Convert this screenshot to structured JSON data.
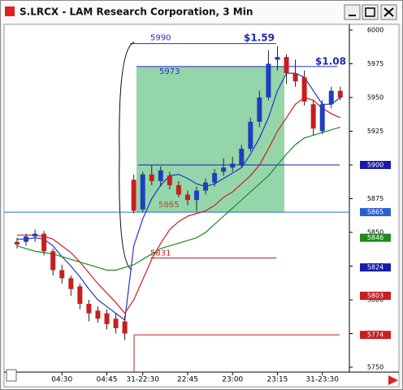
{
  "window": {
    "title": "S.LRCX - LAM Research Corporation, 3 Min"
  },
  "chart_data": {
    "type": "candlestick",
    "categories": [
      null,
      null,
      null,
      null,
      null,
      "04:30",
      null,
      null,
      null,
      null,
      "04:45",
      null,
      null,
      null,
      "31-22:30",
      null,
      null,
      null,
      null,
      "22:45",
      null,
      null,
      null,
      null,
      "23:00",
      null,
      null,
      null,
      null,
      "23:15",
      null,
      null,
      null,
      null,
      "31-23:30",
      null,
      null
    ],
    "open": [
      5843,
      5843,
      5847,
      5849,
      5836,
      5822,
      5816,
      5810,
      5797,
      5792,
      5790,
      5786,
      5784,
      5889,
      5867,
      5893,
      5888,
      5892,
      5885,
      5878,
      5874,
      5881,
      5887,
      5895,
      5898,
      5900,
      5912,
      5932,
      5950,
      5978,
      5980,
      5968,
      5965,
      5945,
      5925,
      5945,
      5955
    ],
    "high": [
      5846,
      5849,
      5852,
      5851,
      5838,
      5826,
      5818,
      5812,
      5800,
      5795,
      5793,
      5790,
      5788,
      5893,
      5895,
      5900,
      5899,
      5895,
      5888,
      5881,
      5884,
      5890,
      5897,
      5905,
      5906,
      5915,
      5935,
      5955,
      5985,
      5988,
      5982,
      5978,
      5970,
      5948,
      5948,
      5958,
      5958
    ],
    "low": [
      5838,
      5840,
      5843,
      5833,
      5818,
      5812,
      5803,
      5793,
      5784,
      5783,
      5778,
      5775,
      5770,
      5864,
      5865,
      5885,
      5884,
      5882,
      5876,
      5870,
      5866,
      5878,
      5884,
      5892,
      5895,
      5898,
      5910,
      5928,
      5948,
      5970,
      5960,
      5958,
      5944,
      5922,
      5923,
      5942,
      5948
    ],
    "close": [
      5841,
      5847,
      5849,
      5836,
      5822,
      5816,
      5808,
      5797,
      5790,
      5786,
      5782,
      5779,
      5775,
      5866,
      5893,
      5888,
      5896,
      5885,
      5878,
      5874,
      5881,
      5887,
      5894,
      5898,
      5901,
      5912,
      5932,
      5950,
      5975,
      5980,
      5968,
      5962,
      5947,
      5927,
      5945,
      5955,
      5950
    ],
    "up_color": "#1f3fbf",
    "down_color": "#c81e1e",
    "moving_averages": [
      {
        "color": "#2233cc",
        "values": [
          5845,
          5845,
          5846,
          5845,
          5840,
          5832,
          5825,
          5817,
          5808,
          5800,
          5795,
          5790,
          5785,
          5840,
          5860,
          5875,
          5885,
          5892,
          5893,
          5890,
          5886,
          5884,
          5886,
          5890,
          5894,
          5898,
          5908,
          5920,
          5935,
          5955,
          5968,
          5968,
          5965,
          5955,
          5945,
          5945,
          5950
        ]
      },
      {
        "color": "#cc1e1e",
        "values": [
          5848,
          5848,
          5848,
          5847,
          5845,
          5840,
          5835,
          5828,
          5820,
          5812,
          5805,
          5798,
          5790,
          5800,
          5815,
          5830,
          5842,
          5852,
          5858,
          5862,
          5864,
          5866,
          5870,
          5876,
          5880,
          5886,
          5892,
          5900,
          5912,
          5925,
          5935,
          5945,
          5950,
          5948,
          5942,
          5938,
          5935
        ]
      },
      {
        "color": "#1f8a1f",
        "values": [
          5840,
          5838,
          5836,
          5835,
          5834,
          5832,
          5830,
          5828,
          5826,
          5824,
          5822,
          5822,
          5824,
          5826,
          5830,
          5834,
          5838,
          5840,
          5842,
          5844,
          5846,
          5850,
          5856,
          5862,
          5868,
          5874,
          5880,
          5886,
          5892,
          5900,
          5908,
          5915,
          5920,
          5922,
          5924,
          5926,
          5928
        ]
      }
    ],
    "levels": [
      {
        "value": 5990,
        "color": "#2a2ac8"
      },
      {
        "value": 5973,
        "color": "#2a2ac8"
      },
      {
        "value": 5900,
        "color": "#1a1aa8"
      },
      {
        "value": 5865,
        "color": "#1f6fd0"
      },
      {
        "value": 5831,
        "color": "#c81e1e"
      },
      {
        "value": 5774,
        "color": "#c81e1e"
      }
    ],
    "zone": [
      5973,
      5865
    ],
    "zone_color": "#3cb464",
    "annotations": [
      "$1.59",
      "$1.08"
    ],
    "price_markers": [
      {
        "value": 5900,
        "color": "#1a1aa8"
      },
      {
        "value": 5865,
        "color": "#2a5fd0"
      },
      {
        "value": 5846,
        "color": "#1f8a1f"
      },
      {
        "value": 5824,
        "color": "#1a1aa8"
      },
      {
        "value": 5803,
        "color": "#c81e1e"
      },
      {
        "value": 5774,
        "color": "#c81e1e"
      }
    ],
    "ylim": [
      5750,
      6000
    ],
    "yticks": [
      6000,
      5975,
      5950,
      5925,
      5900,
      5875,
      5850,
      5825,
      5800,
      5775,
      5750
    ]
  }
}
